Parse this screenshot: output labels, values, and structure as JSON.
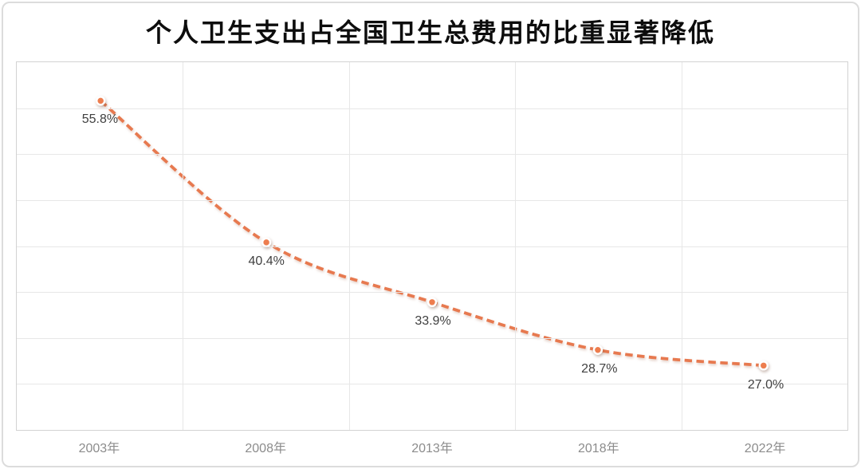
{
  "chart_data": {
    "type": "line",
    "title": "个人卫生支出占全国卫生总费用的比重显著降低",
    "categories": [
      "2003年",
      "2008年",
      "2013年",
      "2018年",
      "2022年"
    ],
    "values": [
      55.8,
      40.4,
      33.9,
      28.7,
      27.0
    ],
    "data_labels": [
      "55.8%",
      "40.4%",
      "33.9%",
      "28.7%",
      "27.0%"
    ],
    "xlabel": "",
    "ylabel": "",
    "ylim": [
      20,
      60
    ],
    "y_gridline_step": 5,
    "grid": "horizontal lines every 5%, vertical lines at category boundaries",
    "legend_position": "none",
    "line_style": "dashed smoothed curve with circular markers, labels below points",
    "colors": {
      "line": "#e7794f",
      "marker_fill": "#ed7d4e",
      "marker_ring": "#ffffff",
      "data_label_text": "#404040",
      "axis_label_text": "#8c8c8c",
      "gridline": "#e7e7e7",
      "plot_border": "#d2d2d2",
      "title_text": "#0d0d0d",
      "card_border": "#dcdcdc",
      "background": "#ffffff"
    }
  }
}
